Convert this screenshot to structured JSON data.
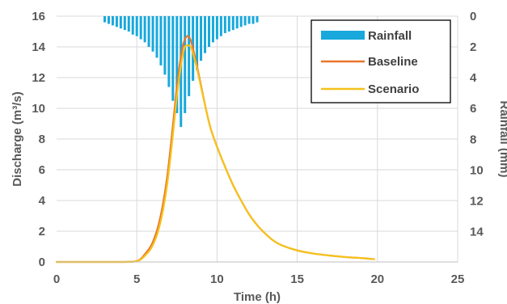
{
  "chart_data": {
    "type": "line",
    "xlabel": "Time (h)",
    "ylabel": "Discharge (m³/s)",
    "y2label": "Rainfall (mm)",
    "xlim": [
      0,
      25
    ],
    "ylim": [
      0,
      16
    ],
    "y2lim": [
      0,
      15
    ],
    "y2_inverted": true,
    "xticks": [
      0,
      5,
      10,
      15,
      20,
      25
    ],
    "yticks": [
      0,
      2,
      4,
      6,
      8,
      10,
      12,
      14,
      16
    ],
    "y2ticks": [
      0,
      2,
      4,
      6,
      8,
      10,
      12,
      14
    ],
    "grid": true,
    "legend_position": "top-right",
    "colors": {
      "rainfall": "#18a8dc",
      "baseline": "#e9762b",
      "scenario": "#f5c21b"
    },
    "rainfall": {
      "name": "Rainfall",
      "type": "bar",
      "axis": "right",
      "x": [
        3.0,
        3.25,
        3.5,
        3.75,
        4.0,
        4.25,
        4.5,
        4.75,
        5.0,
        5.25,
        5.5,
        5.75,
        6.0,
        6.25,
        6.5,
        6.75,
        7.0,
        7.25,
        7.5,
        7.75,
        8.0,
        8.25,
        8.5,
        8.75,
        9.0,
        9.25,
        9.5,
        9.75,
        10.0,
        10.25,
        10.5,
        10.75,
        11.0,
        11.25,
        11.5,
        11.75,
        12.0,
        12.25,
        12.5
      ],
      "values": [
        0.4,
        0.5,
        0.6,
        0.7,
        0.8,
        0.9,
        1.0,
        1.2,
        1.3,
        1.5,
        1.7,
        2.0,
        2.3,
        2.7,
        3.2,
        3.8,
        4.6,
        5.5,
        6.3,
        7.2,
        6.3,
        5.2,
        4.2,
        3.5,
        2.9,
        2.4,
        2.0,
        1.7,
        1.5,
        1.3,
        1.1,
        1.0,
        0.9,
        0.8,
        0.7,
        0.6,
        0.5,
        0.5,
        0.4
      ]
    },
    "series": [
      {
        "name": "Baseline",
        "axis": "left",
        "x": [
          0,
          1,
          2,
          3,
          4,
          4.8,
          5.1,
          5.3,
          5.5,
          5.8,
          6.0,
          6.3,
          6.6,
          6.9,
          7.2,
          7.5,
          7.8,
          8.0,
          8.2,
          8.4,
          8.7,
          9.0,
          9.3,
          9.6,
          10.0,
          10.5,
          11.0,
          11.5,
          12.0,
          12.5,
          13.0,
          13.5,
          14.0,
          15.0,
          16.0,
          17.0,
          18.0,
          19.0,
          19.8
        ],
        "values": [
          0,
          0,
          0,
          0,
          0,
          0.02,
          0.1,
          0.25,
          0.5,
          0.9,
          1.3,
          2.2,
          3.6,
          5.6,
          8.4,
          11.4,
          13.7,
          14.5,
          14.7,
          14.3,
          13.0,
          11.5,
          10.0,
          8.7,
          7.5,
          6.2,
          5.0,
          4.0,
          3.1,
          2.4,
          1.85,
          1.4,
          1.1,
          0.75,
          0.55,
          0.42,
          0.32,
          0.25,
          0.18
        ]
      },
      {
        "name": "Scenario",
        "axis": "left",
        "x": [
          0,
          1,
          2,
          3,
          4,
          4.8,
          5.1,
          5.3,
          5.5,
          5.8,
          6.0,
          6.3,
          6.6,
          6.9,
          7.2,
          7.5,
          7.8,
          8.0,
          8.2,
          8.4,
          8.7,
          9.0,
          9.3,
          9.6,
          10.0,
          10.5,
          11.0,
          11.5,
          12.0,
          12.5,
          13.0,
          13.5,
          14.0,
          15.0,
          16.0,
          17.0,
          18.0,
          19.0,
          19.8
        ],
        "values": [
          0,
          0,
          0,
          0,
          0,
          0.02,
          0.08,
          0.2,
          0.4,
          0.75,
          1.1,
          1.9,
          3.2,
          5.1,
          7.8,
          10.8,
          13.1,
          14.0,
          14.1,
          13.9,
          12.8,
          11.4,
          10.0,
          8.7,
          7.5,
          6.2,
          5.0,
          4.0,
          3.1,
          2.4,
          1.85,
          1.4,
          1.1,
          0.75,
          0.55,
          0.42,
          0.32,
          0.25,
          0.18
        ]
      }
    ]
  }
}
